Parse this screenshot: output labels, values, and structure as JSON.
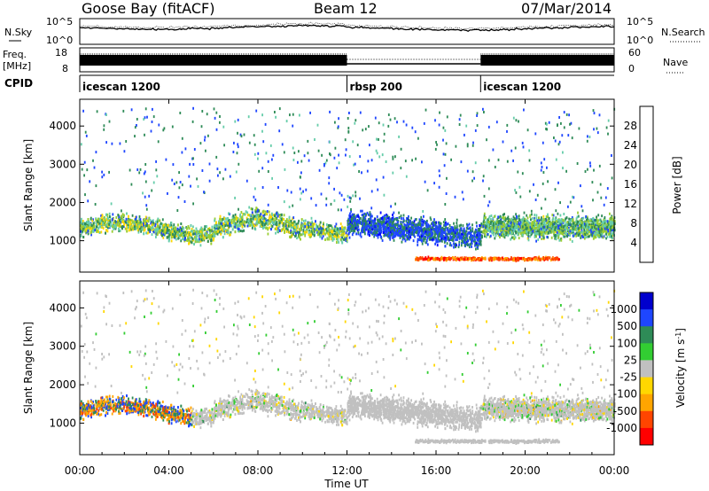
{
  "header": {
    "station": "Goose Bay (fitACF)",
    "beam": "Beam 12",
    "date": "07/Mar/2014"
  },
  "colors": {
    "scatter_gray": "#c0c0c0",
    "power_scale": [
      "#0000ff",
      "#1e46ff",
      "#2e8b57",
      "#66cdaa",
      "#9acd32",
      "#ffd700",
      "#ffa500",
      "#ff4500",
      "#ff0000"
    ],
    "velocity_scale": [
      "#0000cd",
      "#1e46ff",
      "#2e8b57",
      "#32cd32",
      "#c0c0c0",
      "#ffd700",
      "#ffa500",
      "#ff4500",
      "#ff0000"
    ]
  },
  "chart_data": [
    {
      "type": "line",
      "name": "noise-and-search-panel",
      "left_label": "N.Sky",
      "right_label": "N.Search",
      "left_ticks": [
        "10^5",
        "10^0"
      ],
      "right_ticks": [
        "10^5",
        "10^0"
      ]
    },
    {
      "type": "line",
      "name": "frequency-panel",
      "left_label_top": "Freq.",
      "left_label_bottom": "[MHz]",
      "right_label": "Nave",
      "left_ticks": [
        "18",
        "8"
      ],
      "right_ticks": [
        "60",
        "0"
      ],
      "segments": [
        {
          "start_h": 0,
          "end_h": 12,
          "level": "high"
        },
        {
          "start_h": 12,
          "end_h": 18,
          "level": "low"
        },
        {
          "start_h": 18,
          "end_h": 24,
          "level": "high"
        }
      ]
    },
    {
      "type": "table",
      "name": "cpid-panel",
      "label": "CPID",
      "modes": [
        {
          "name": "icescan 1200",
          "start_h": 0
        },
        {
          "name": "rbsp 200",
          "start_h": 12
        },
        {
          "name": "icescan 1200",
          "start_h": 18
        }
      ]
    },
    {
      "type": "heatmap",
      "name": "power-panel",
      "ylabel": "Slant Range [km]",
      "yticks": [
        1000,
        2000,
        3000,
        4000
      ],
      "ylim": [
        180,
        4700
      ],
      "xlim": [
        0,
        24
      ],
      "colorbar_title": "Power [dB]",
      "colorbar_ticks": [
        "28",
        "24",
        "20",
        "16",
        "12",
        "8",
        "4"
      ],
      "colorbar_range": [
        0,
        32
      ]
    },
    {
      "type": "heatmap",
      "name": "velocity-panel",
      "ylabel": "Slant Range [km]",
      "yticks": [
        1000,
        2000,
        3000,
        4000
      ],
      "ylim": [
        180,
        4700
      ],
      "xlim": [
        0,
        24
      ],
      "xlabel": "Time UT",
      "xticks": [
        "00:00",
        "04:00",
        "08:00",
        "12:00",
        "16:00",
        "20:00",
        "00:00"
      ],
      "colorbar_title": "Velocity [m s",
      "colorbar_title_sup": "-1",
      "colorbar_title_end": "]",
      "colorbar_ticks": [
        "1000",
        "500",
        "100",
        "25",
        "-25",
        "-100",
        "-500",
        "-1000"
      ]
    }
  ]
}
